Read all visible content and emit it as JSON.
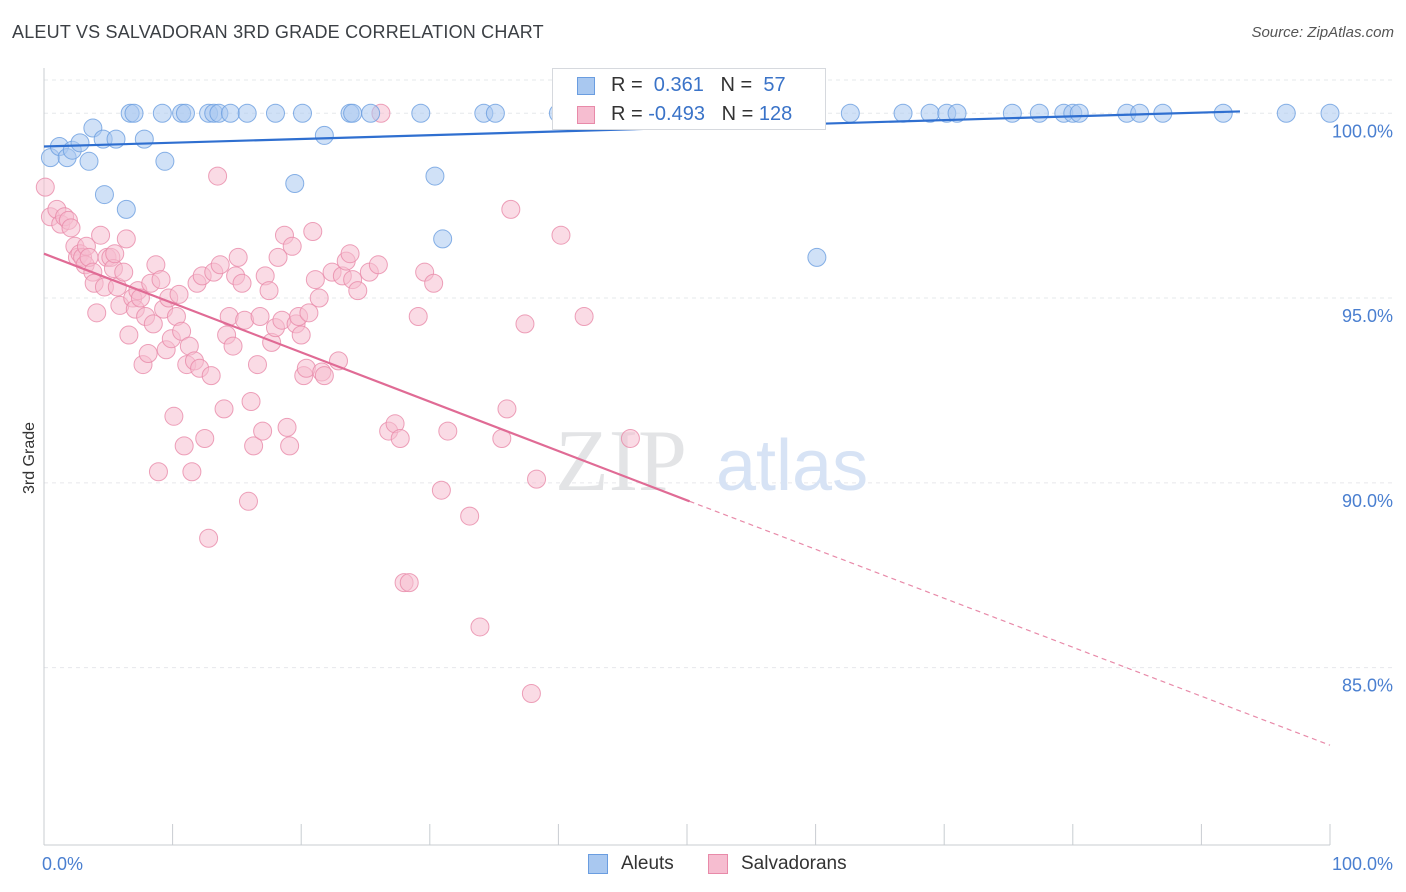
{
  "title": "ALEUT VS SALVADORAN 3RD GRADE CORRELATION CHART",
  "source": "Source: ZipAtlas.com",
  "watermark": {
    "zip": "ZIP",
    "atlas": "atlas"
  },
  "legend_top": {
    "rows": [
      {
        "r_label": "R =",
        "r_value": " 0.361",
        "n_label": "N =",
        "n_value": " 57",
        "color": "#a9c8f0",
        "border": "#6a9de0"
      },
      {
        "r_label": "R =",
        "r_value": "-0.493",
        "n_label": "N =",
        "n_value": "128",
        "color": "#f6bdd0",
        "border": "#e88aa9"
      }
    ]
  },
  "legend_bottom": [
    {
      "label": "Aleuts",
      "color": "#a9c8f0",
      "border": "#6a9de0"
    },
    {
      "label": "Salvadorans",
      "color": "#f6bdd0",
      "border": "#e88aa9"
    }
  ],
  "chart_data": {
    "type": "scatter",
    "title": "ALEUT VS SALVADORAN 3RD GRADE CORRELATION CHART",
    "xlabel": "",
    "ylabel": "3rd Grade",
    "xlim": [
      0,
      100
    ],
    "ylim": [
      80.2,
      100.9
    ],
    "x_tick_labels": [
      "0.0%",
      "100.0%"
    ],
    "y_ticks": [
      85,
      90,
      95,
      100
    ],
    "y_tick_labels": [
      "85.0%",
      "90.0%",
      "95.0%",
      "100.0%"
    ],
    "grid": true,
    "series": [
      {
        "name": "Aleuts",
        "color": "#6a9de0",
        "fill": "#a9c8f0",
        "trend": {
          "x": [
            0,
            93
          ],
          "y": [
            99.1,
            100.05
          ],
          "style": "solid"
        },
        "points": [
          [
            0.5,
            98.8
          ],
          [
            1.2,
            99.1
          ],
          [
            1.8,
            98.8
          ],
          [
            2.2,
            99.0
          ],
          [
            2.8,
            99.2
          ],
          [
            3.5,
            98.7
          ],
          [
            3.8,
            99.6
          ],
          [
            4.6,
            99.3
          ],
          [
            4.7,
            97.8
          ],
          [
            5.6,
            99.3
          ],
          [
            6.4,
            97.4
          ],
          [
            6.7,
            100.0
          ],
          [
            7.0,
            100.0
          ],
          [
            7.8,
            99.3
          ],
          [
            9.2,
            100.0
          ],
          [
            9.4,
            98.7
          ],
          [
            10.7,
            100.0
          ],
          [
            11.0,
            100.0
          ],
          [
            12.8,
            100.0
          ],
          [
            13.2,
            100.0
          ],
          [
            13.6,
            100.0
          ],
          [
            14.5,
            100.0
          ],
          [
            15.8,
            100.0
          ],
          [
            18.0,
            100.0
          ],
          [
            19.5,
            98.1
          ],
          [
            20.1,
            100.0
          ],
          [
            21.8,
            99.4
          ],
          [
            23.8,
            100.0
          ],
          [
            24.0,
            100.0
          ],
          [
            25.4,
            100.0
          ],
          [
            29.3,
            100.0
          ],
          [
            30.4,
            98.3
          ],
          [
            31.0,
            96.6
          ],
          [
            34.2,
            100.0
          ],
          [
            35.1,
            100.0
          ],
          [
            40.0,
            100.0
          ],
          [
            43.3,
            100.0
          ],
          [
            49.1,
            100.0
          ],
          [
            54.0,
            100.0
          ],
          [
            56.5,
            100.0
          ],
          [
            60.1,
            96.1
          ],
          [
            62.7,
            100.0
          ],
          [
            66.8,
            100.0
          ],
          [
            68.9,
            100.0
          ],
          [
            70.2,
            100.0
          ],
          [
            71.0,
            100.0
          ],
          [
            75.3,
            100.0
          ],
          [
            77.4,
            100.0
          ],
          [
            79.3,
            100.0
          ],
          [
            80.0,
            100.0
          ],
          [
            80.5,
            100.0
          ],
          [
            84.2,
            100.0
          ],
          [
            85.2,
            100.0
          ],
          [
            87.0,
            100.0
          ],
          [
            91.7,
            100.0
          ],
          [
            96.6,
            100.0
          ],
          [
            100.0,
            100.0
          ]
        ]
      },
      {
        "name": "Salvadorans",
        "color": "#e88aa9",
        "fill": "#f6bdd0",
        "trend": {
          "x": [
            0,
            50.2,
            100
          ],
          "y": [
            96.2,
            89.5,
            82.9
          ],
          "style": "solid-then-dashed"
        },
        "points": [
          [
            0.1,
            98.0
          ],
          [
            0.5,
            97.2
          ],
          [
            1.0,
            97.4
          ],
          [
            1.3,
            97.0
          ],
          [
            1.6,
            97.2
          ],
          [
            1.9,
            97.1
          ],
          [
            2.1,
            96.9
          ],
          [
            2.4,
            96.4
          ],
          [
            2.6,
            96.1
          ],
          [
            2.8,
            96.2
          ],
          [
            3.0,
            96.1
          ],
          [
            3.2,
            95.9
          ],
          [
            3.3,
            96.4
          ],
          [
            3.5,
            96.1
          ],
          [
            3.8,
            95.7
          ],
          [
            3.9,
            95.4
          ],
          [
            4.1,
            94.6
          ],
          [
            4.4,
            96.7
          ],
          [
            4.7,
            95.3
          ],
          [
            4.9,
            96.1
          ],
          [
            5.2,
            96.1
          ],
          [
            5.4,
            95.8
          ],
          [
            5.5,
            96.2
          ],
          [
            5.7,
            95.3
          ],
          [
            5.9,
            94.8
          ],
          [
            6.2,
            95.7
          ],
          [
            6.4,
            96.6
          ],
          [
            6.6,
            94.0
          ],
          [
            6.9,
            95.0
          ],
          [
            7.1,
            94.7
          ],
          [
            7.3,
            95.2
          ],
          [
            7.5,
            95.0
          ],
          [
            7.7,
            93.2
          ],
          [
            7.9,
            94.5
          ],
          [
            8.1,
            93.5
          ],
          [
            8.3,
            95.4
          ],
          [
            8.5,
            94.3
          ],
          [
            8.7,
            95.9
          ],
          [
            8.9,
            90.3
          ],
          [
            9.1,
            95.5
          ],
          [
            9.3,
            94.7
          ],
          [
            9.5,
            93.6
          ],
          [
            9.7,
            95.0
          ],
          [
            9.9,
            93.9
          ],
          [
            10.1,
            91.8
          ],
          [
            10.3,
            94.5
          ],
          [
            10.5,
            95.1
          ],
          [
            10.7,
            94.1
          ],
          [
            10.9,
            91.0
          ],
          [
            11.1,
            93.2
          ],
          [
            11.3,
            93.7
          ],
          [
            11.5,
            90.3
          ],
          [
            11.7,
            93.3
          ],
          [
            11.9,
            95.4
          ],
          [
            12.1,
            93.1
          ],
          [
            12.3,
            95.6
          ],
          [
            12.5,
            91.2
          ],
          [
            12.8,
            88.5
          ],
          [
            13.0,
            92.9
          ],
          [
            13.2,
            95.7
          ],
          [
            13.5,
            98.3
          ],
          [
            13.7,
            95.9
          ],
          [
            14.0,
            92.0
          ],
          [
            14.2,
            94.0
          ],
          [
            14.4,
            94.5
          ],
          [
            14.7,
            93.7
          ],
          [
            14.9,
            95.6
          ],
          [
            15.1,
            96.1
          ],
          [
            15.4,
            95.4
          ],
          [
            15.6,
            94.4
          ],
          [
            15.9,
            89.5
          ],
          [
            16.1,
            92.2
          ],
          [
            16.3,
            91.0
          ],
          [
            16.6,
            93.2
          ],
          [
            16.8,
            94.5
          ],
          [
            17.0,
            91.4
          ],
          [
            17.2,
            95.6
          ],
          [
            17.5,
            95.2
          ],
          [
            17.7,
            93.8
          ],
          [
            18.0,
            94.2
          ],
          [
            18.2,
            96.1
          ],
          [
            18.5,
            94.4
          ],
          [
            18.7,
            96.7
          ],
          [
            18.9,
            91.5
          ],
          [
            19.1,
            91.0
          ],
          [
            19.3,
            96.4
          ],
          [
            19.6,
            94.3
          ],
          [
            19.8,
            94.5
          ],
          [
            20.0,
            94.0
          ],
          [
            20.2,
            92.9
          ],
          [
            20.4,
            93.1
          ],
          [
            20.6,
            94.6
          ],
          [
            20.9,
            96.8
          ],
          [
            21.1,
            95.5
          ],
          [
            21.4,
            95.0
          ],
          [
            21.6,
            93.0
          ],
          [
            21.8,
            92.9
          ],
          [
            22.4,
            95.7
          ],
          [
            22.9,
            93.3
          ],
          [
            23.2,
            95.6
          ],
          [
            23.5,
            96.0
          ],
          [
            23.8,
            96.2
          ],
          [
            24.0,
            95.5
          ],
          [
            24.4,
            95.2
          ],
          [
            25.3,
            95.7
          ],
          [
            26.0,
            95.9
          ],
          [
            26.2,
            100.0
          ],
          [
            26.8,
            91.4
          ],
          [
            27.3,
            91.6
          ],
          [
            27.7,
            91.2
          ],
          [
            28.0,
            87.3
          ],
          [
            28.4,
            87.3
          ],
          [
            29.1,
            94.5
          ],
          [
            29.6,
            95.7
          ],
          [
            30.3,
            95.4
          ],
          [
            30.9,
            89.8
          ],
          [
            31.4,
            91.4
          ],
          [
            33.1,
            89.1
          ],
          [
            33.9,
            86.1
          ],
          [
            35.6,
            91.2
          ],
          [
            36.3,
            97.4
          ],
          [
            37.4,
            94.3
          ],
          [
            38.3,
            90.1
          ],
          [
            40.2,
            96.7
          ],
          [
            42.0,
            94.5
          ],
          [
            45.6,
            91.2
          ],
          [
            36.0,
            92.0
          ],
          [
            37.9,
            84.3
          ]
        ]
      }
    ]
  }
}
